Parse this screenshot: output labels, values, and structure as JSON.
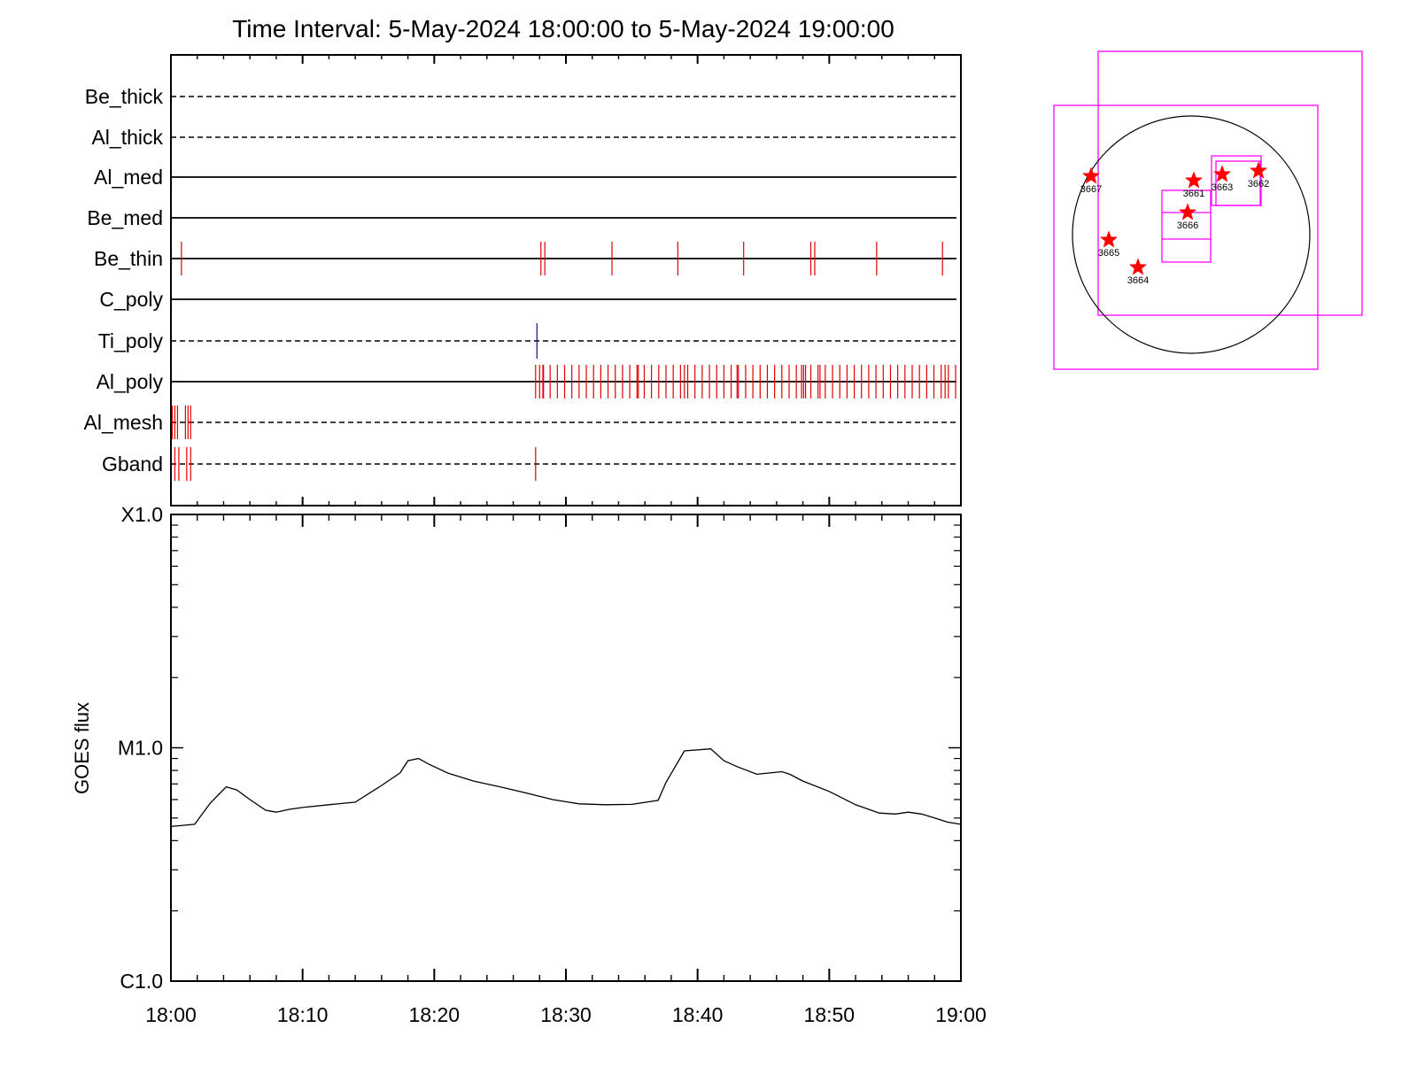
{
  "title": "Time Interval:  5-May-2024 18:00:00 to  5-May-2024 19:00:00",
  "colors": {
    "ticks": "#e00000",
    "ti_tick": "#101080",
    "goes": "#000000",
    "box": "#ff00ff",
    "star": "#ff0000"
  },
  "chart_data": [
    {
      "type": "event-timeline",
      "x_unit": "minutes after 18:00",
      "xlim": [
        0,
        60
      ],
      "filters": [
        {
          "name": "Be_thick",
          "style": "dashed",
          "events": []
        },
        {
          "name": "Al_thick",
          "style": "dashed",
          "events": []
        },
        {
          "name": "Al_med",
          "style": "solid",
          "events": []
        },
        {
          "name": "Be_med",
          "style": "solid",
          "events": []
        },
        {
          "name": "Be_thin",
          "style": "solid",
          "events": [
            0.8,
            28.1,
            28.4,
            33.5,
            38.5,
            43.5,
            48.6,
            48.9,
            53.6,
            58.6
          ]
        },
        {
          "name": "C_poly",
          "style": "solid",
          "events": []
        },
        {
          "name": "Ti_poly",
          "style": "dashed",
          "events": [
            27.8
          ]
        },
        {
          "name": "Al_poly",
          "style": "solid",
          "events": "dense 27.7-60"
        },
        {
          "name": "Al_mesh",
          "style": "dashed",
          "events": [
            0.1,
            0.3,
            0.5,
            1.1,
            1.3,
            1.5
          ]
        },
        {
          "name": "Gband",
          "style": "dashed",
          "events": [
            0.3,
            0.6,
            1.2,
            1.5,
            27.7
          ]
        }
      ]
    },
    {
      "type": "line",
      "ylabel": "GOES flux",
      "yscale": "log",
      "ylim": [
        1e-06,
        0.0001
      ],
      "y_ticks": [
        {
          "value": 1e-06,
          "label": "C1.0"
        },
        {
          "value": 1e-05,
          "label": "M1.0"
        },
        {
          "value": 0.0001,
          "label": "X1.0"
        }
      ],
      "x_ticks": [
        "18:00",
        "18:10",
        "18:20",
        "18:30",
        "18:40",
        "18:50",
        "19:00"
      ],
      "series": [
        {
          "x": [
            0,
            1.8,
            3.0,
            4.2,
            5.0,
            6.0,
            7.2,
            8.0,
            9.0,
            10.0,
            12.0,
            14.0,
            16.0,
            17.4,
            18.0,
            18.8,
            19.6,
            21.0,
            23.0,
            25.0,
            27.0,
            29.0,
            31.0,
            33.0,
            35.0,
            37.0,
            37.6,
            39.0,
            41.0,
            42.0,
            43.0,
            44.5,
            45.5,
            46.4,
            47.0,
            48.0,
            50.0,
            52.0,
            53.8,
            55.0,
            56.0,
            57.0,
            58.0,
            59.0,
            60.0
          ],
          "y": [
            4.6e-06,
            4.7e-06,
            5.8e-06,
            6.8e-06,
            6.6e-06,
            6e-06,
            5.4e-06,
            5.3e-06,
            5.45e-06,
            5.55e-06,
            5.7e-06,
            5.85e-06,
            6.9e-06,
            7.8e-06,
            8.8e-06,
            9e-06,
            8.5e-06,
            7.8e-06,
            7.2e-06,
            6.8e-06,
            6.4e-06,
            6e-06,
            5.75e-06,
            5.7e-06,
            5.72e-06,
            5.95e-06,
            7.1e-06,
            9.7e-06,
            9.9e-06,
            8.8e-06,
            8.3e-06,
            7.7e-06,
            7.8e-06,
            7.9e-06,
            7.7e-06,
            7.2e-06,
            6.5e-06,
            5.7e-06,
            5.25e-06,
            5.2e-06,
            5.3e-06,
            5.2e-06,
            5e-06,
            4.8e-06,
            4.7e-06
          ]
        }
      ]
    },
    {
      "type": "scatter",
      "points": [
        {
          "name": "3667"
        },
        {
          "name": "3661"
        },
        {
          "name": "3663"
        },
        {
          "name": "3662"
        },
        {
          "name": "3666"
        },
        {
          "name": "3665"
        },
        {
          "name": "3664"
        }
      ]
    }
  ]
}
